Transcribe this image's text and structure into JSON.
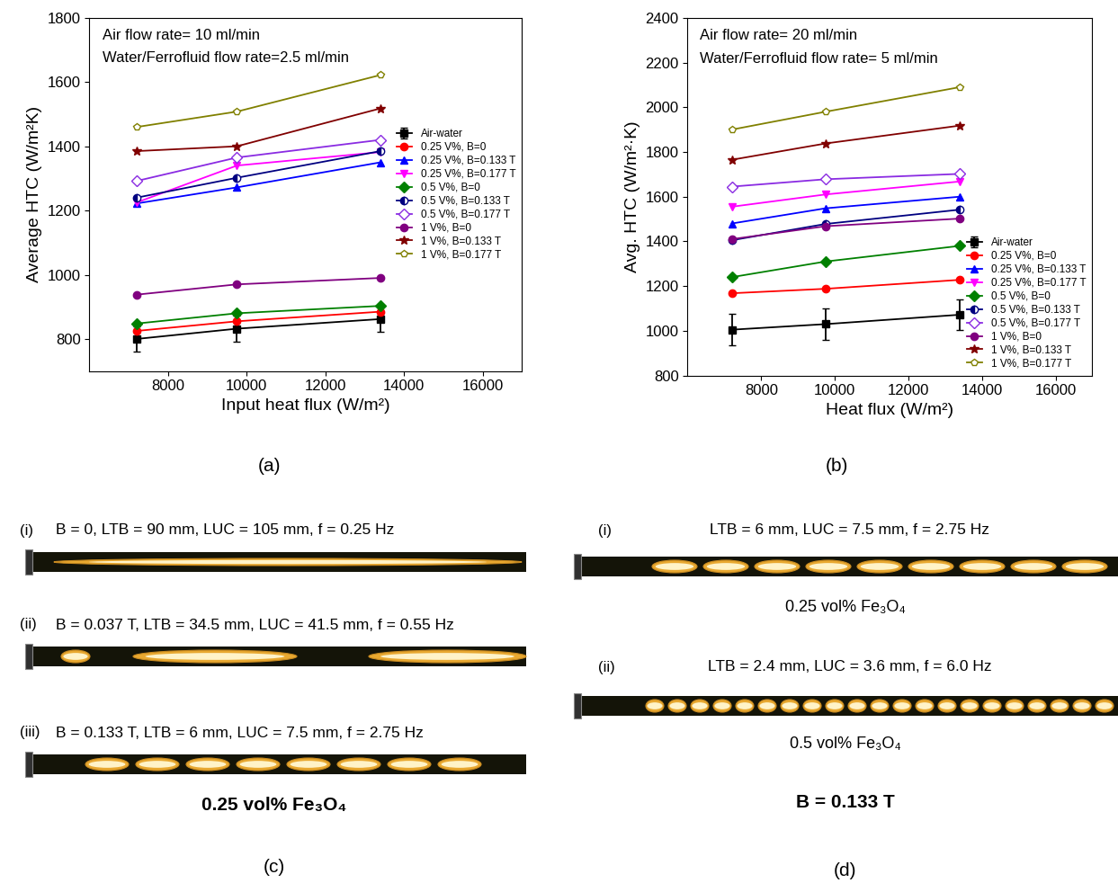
{
  "chart_data": [
    {
      "type": "line",
      "caption": "(a)",
      "annotations": [
        "Air flow rate= 10 ml/min",
        "Water/Ferrofluid flow rate=2.5 ml/min"
      ],
      "x_label": "Input heat flux (W/m²)",
      "y_label": "Average HTC (W/m²K)",
      "x": [
        7200,
        9750,
        13400
      ],
      "xlim": [
        6000,
        17000
      ],
      "xticks": [
        8000,
        10000,
        12000,
        14000,
        16000
      ],
      "ylim": [
        700,
        1800
      ],
      "yticks": [
        800,
        1000,
        1200,
        1400,
        1600,
        1800
      ],
      "legend": "center right",
      "series": [
        {
          "name": "Air-water",
          "color": "#000000",
          "marker": "square",
          "values": [
            800,
            832,
            862
          ],
          "errors": [
            40,
            40,
            40
          ]
        },
        {
          "name": "0.25 V%, B=0",
          "color": "#ff0000",
          "marker": "circle",
          "values": [
            825,
            855,
            885
          ]
        },
        {
          "name": "0.25 V%, B=0.133 T",
          "color": "#0000ff",
          "marker": "triangle_up",
          "values": [
            1222,
            1272,
            1350
          ]
        },
        {
          "name": "0.25 V%, B=0.177 T",
          "color": "#ff00ff",
          "marker": "triangle_down",
          "values": [
            1225,
            1340,
            1382
          ]
        },
        {
          "name": "0.5 V%, B=0",
          "color": "#008000",
          "marker": "diamond",
          "values": [
            848,
            880,
            903
          ]
        },
        {
          "name": "0.5 V%, B=0.133 T",
          "color": "#000080",
          "marker": "circle_half",
          "values": [
            1240,
            1302,
            1385
          ]
        },
        {
          "name": "0.5 V%, B=0.177 T",
          "color": "#8a2be2",
          "marker": "diamond_open",
          "values": [
            1292,
            1365,
            1420
          ]
        },
        {
          "name": "1 V%, B=0",
          "color": "#800080",
          "marker": "circle",
          "values": [
            938,
            970,
            990
          ]
        },
        {
          "name": "1 V%, B=0.133 T",
          "color": "#800000",
          "marker": "star",
          "values": [
            1385,
            1400,
            1518
          ]
        },
        {
          "name": "1 V%, B=0.177 T",
          "color": "#808000",
          "marker": "pentagon_open",
          "values": [
            1460,
            1508,
            1622
          ]
        }
      ]
    },
    {
      "type": "line",
      "caption": "(b)",
      "annotations": [
        "Air flow rate= 20 ml/min",
        "Water/Ferrofluid flow rate= 5 ml/min"
      ],
      "x_label": "Heat flux (W/m²)",
      "y_label": "Avg. HTC (W/m²·K)",
      "x": [
        7200,
        9750,
        13400
      ],
      "xlim": [
        6000,
        17000
      ],
      "xticks": [
        8000,
        10000,
        12000,
        14000,
        16000
      ],
      "ylim": [
        800,
        2400
      ],
      "yticks": [
        800,
        1000,
        1200,
        1400,
        1600,
        1800,
        2000,
        2200,
        2400
      ],
      "legend": "lower right",
      "series": [
        {
          "name": "Air-water",
          "color": "#000000",
          "marker": "square",
          "values": [
            1005,
            1030,
            1072
          ],
          "errors": [
            70,
            70,
            70
          ]
        },
        {
          "name": "0.25 V%, B=0",
          "color": "#ff0000",
          "marker": "circle",
          "values": [
            1168,
            1188,
            1228
          ]
        },
        {
          "name": "0.25 V%, B=0.133 T",
          "color": "#0000ff",
          "marker": "triangle_up",
          "values": [
            1480,
            1548,
            1600
          ]
        },
        {
          "name": "0.25 V%, B=0.177 T",
          "color": "#ff00ff",
          "marker": "triangle_down",
          "values": [
            1555,
            1610,
            1668
          ]
        },
        {
          "name": "0.5 V%, B=0",
          "color": "#008000",
          "marker": "diamond",
          "values": [
            1240,
            1310,
            1380
          ]
        },
        {
          "name": "0.5 V%, B=0.133 T",
          "color": "#000080",
          "marker": "circle_half",
          "values": [
            1405,
            1478,
            1542
          ]
        },
        {
          "name": "0.5 V%, B=0.177 T",
          "color": "#8a2be2",
          "marker": "diamond_open",
          "values": [
            1645,
            1678,
            1702
          ]
        },
        {
          "name": "1 V%, B=0",
          "color": "#800080",
          "marker": "circle",
          "values": [
            1410,
            1468,
            1502
          ]
        },
        {
          "name": "1 V%, B=0.133 T",
          "color": "#800000",
          "marker": "star",
          "values": [
            1765,
            1838,
            1918
          ]
        },
        {
          "name": "1 V%, B=0.177 T",
          "color": "#808000",
          "marker": "pentagon_open",
          "values": [
            1900,
            1980,
            2090
          ]
        }
      ]
    }
  ],
  "panels": [
    {
      "caption": "(c)",
      "subtitle": "0.25 vol% Fe₃O₄",
      "strips": [
        {
          "label": "(i)",
          "text": "B = 0, LTB = 90 mm, LUC = 105 mm, f = 0.25 Hz"
        },
        {
          "label": "(ii)",
          "text": "B = 0.037 T, LTB = 34.5 mm, LUC = 41.5 mm, f = 0.55 Hz"
        },
        {
          "label": "(iii)",
          "text": "B = 0.133 T, LTB = 6 mm, LUC = 7.5 mm, f = 2.75 Hz"
        }
      ]
    },
    {
      "caption": "(d)",
      "subtitle": "B = 0.133 T",
      "strips": [
        {
          "label": "(i)",
          "text": "LTB = 6 mm, LUC = 7.5 mm, f = 2.75 Hz",
          "note": "0.25 vol% Fe₃O₄"
        },
        {
          "label": "(ii)",
          "text": "LTB = 2.4 mm, LUC = 3.6 mm, f = 6.0 Hz",
          "note": "0.5 vol% Fe₃O₄"
        }
      ]
    }
  ]
}
